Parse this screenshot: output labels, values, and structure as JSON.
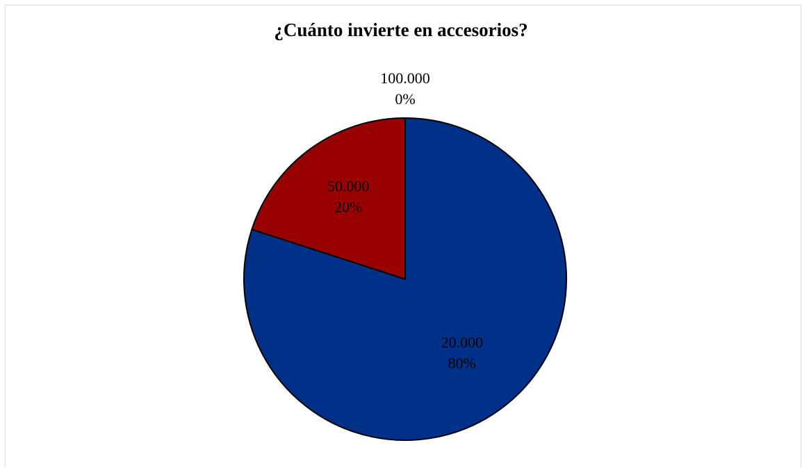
{
  "chart_data": {
    "type": "pie",
    "title": "¿Cuánto invierte en accesorios?",
    "slices": [
      {
        "label": "20.000",
        "percent_label": "80%",
        "value": 80,
        "color": "#003087"
      },
      {
        "label": "50.000",
        "percent_label": "20%",
        "value": 20,
        "color": "#990000"
      },
      {
        "label": "100.000",
        "percent_label": "0%",
        "value": 0,
        "color": "#ffffff"
      }
    ],
    "start_angle": "12 o'clock",
    "direction": "clockwise",
    "legend": "none"
  }
}
